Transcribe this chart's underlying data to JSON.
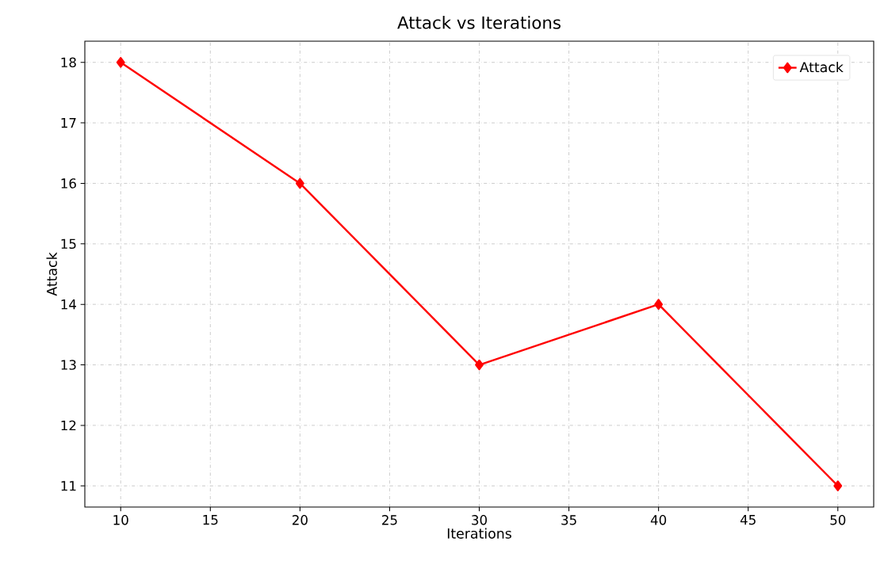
{
  "chart_data": {
    "type": "line",
    "title": "Attack vs Iterations",
    "xlabel": "Iterations",
    "ylabel": "Attack",
    "x": [
      10,
      20,
      30,
      40,
      50
    ],
    "series": [
      {
        "name": "Attack",
        "color": "#ff0000",
        "values": [
          18,
          16,
          13,
          14,
          11
        ]
      }
    ],
    "xlim": [
      8,
      52
    ],
    "ylim": [
      10.65,
      18.35
    ],
    "xticks": [
      10,
      15,
      20,
      25,
      30,
      35,
      40,
      45,
      50
    ],
    "yticks": [
      11,
      12,
      13,
      14,
      15,
      16,
      17,
      18
    ],
    "grid": true,
    "legend": "top right",
    "marker": "diamond",
    "line_style": "solid"
  }
}
